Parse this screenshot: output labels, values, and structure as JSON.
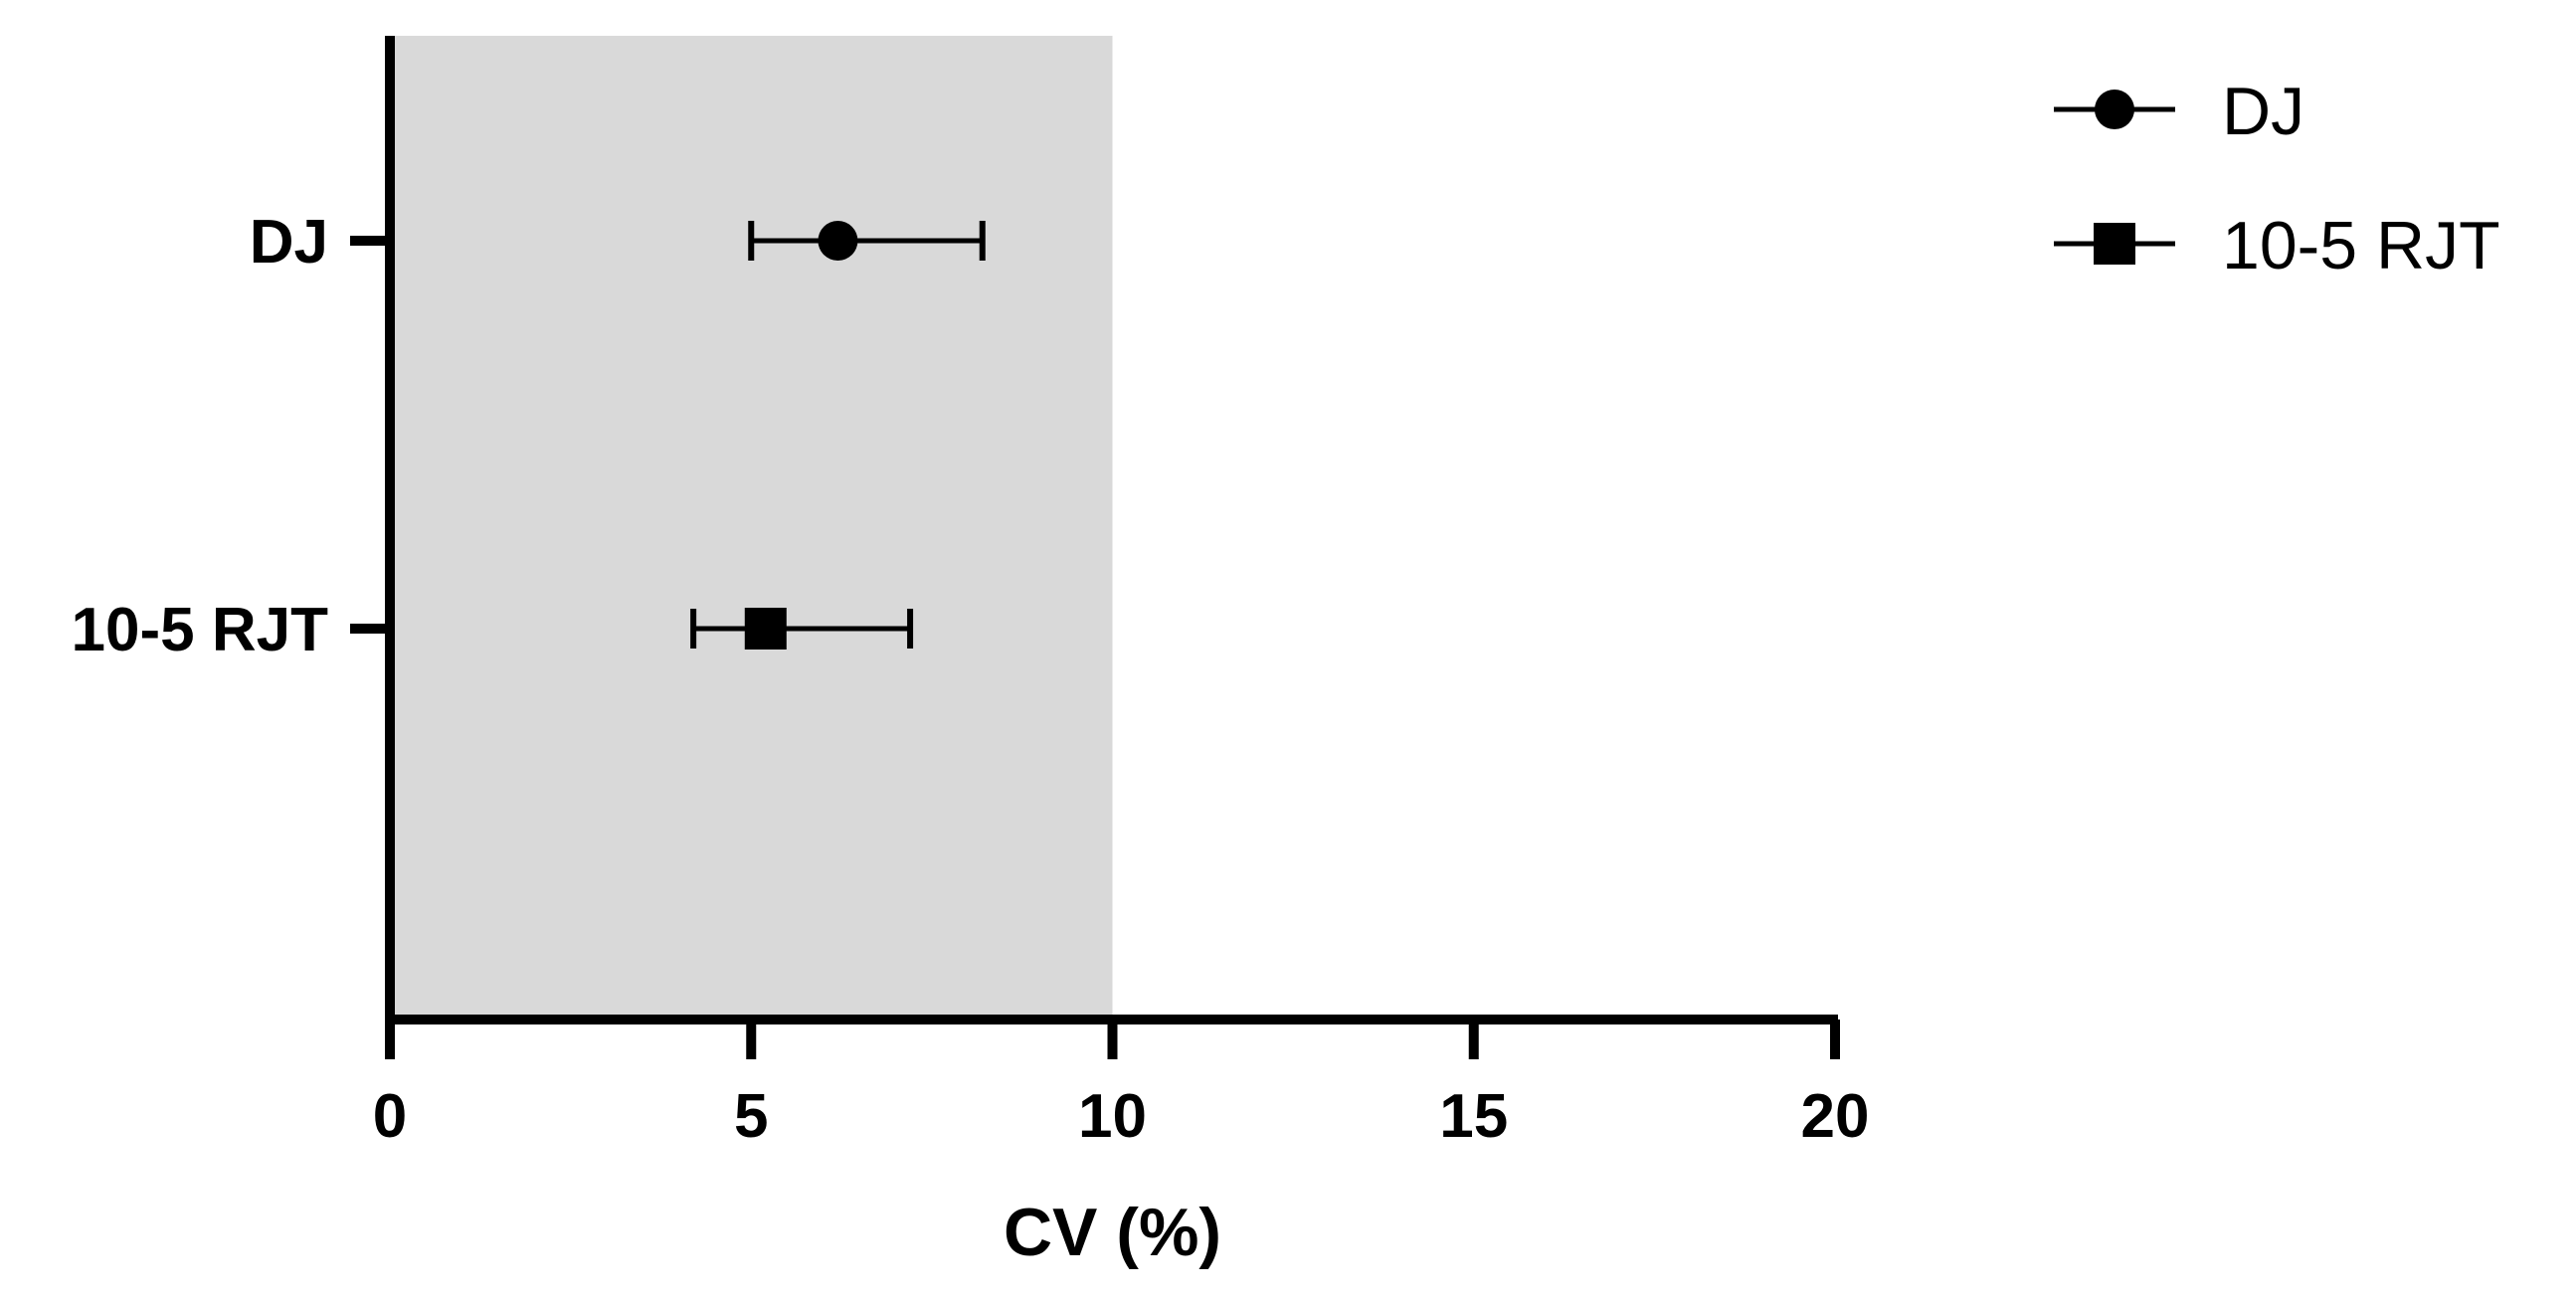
{
  "chart_data": {
    "type": "scatter",
    "orientation": "horizontal",
    "title": "",
    "xlabel": "CV (%)",
    "ylabel": "",
    "xlim": [
      0,
      20
    ],
    "x_ticks": [
      "0",
      "5",
      "10",
      "15",
      "20"
    ],
    "categories": [
      "DJ",
      "10-5 RJT"
    ],
    "series": [
      {
        "name": "DJ",
        "marker": "circle",
        "value": 6.2,
        "error_low": 5.0,
        "error_high": 8.2
      },
      {
        "name": "10-5 RJT",
        "marker": "square",
        "value": 5.2,
        "error_low": 4.2,
        "error_high": 7.2
      }
    ],
    "shaded_region": {
      "x_from": 0,
      "x_to": 10,
      "color": "#d9d9d9"
    },
    "legend_position": "top-right",
    "grid": false,
    "colors": {
      "marker": "#000000",
      "axis": "#000000",
      "shade": "#d9d9d9"
    }
  }
}
